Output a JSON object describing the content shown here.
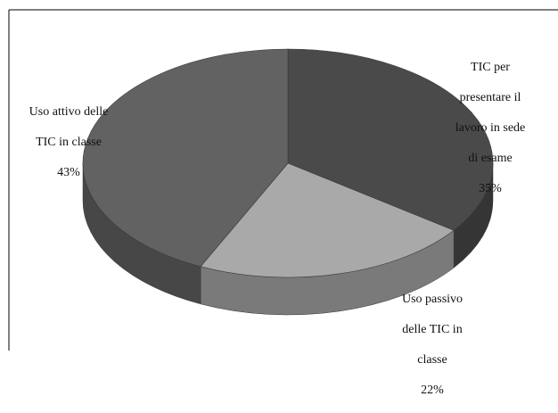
{
  "chart_data": {
    "type": "pie",
    "style": "3d",
    "legend": "none",
    "slices": [
      {
        "label_lines": [
          "TIC per",
          "presentare il",
          "lavoro in sede",
          "di esame"
        ],
        "value": 35,
        "percent_label": "35%",
        "color": "#4a4a4a"
      },
      {
        "label_lines": [
          "Uso passivo",
          "delle TIC in",
          "classe"
        ],
        "value": 22,
        "percent_label": "22%",
        "color": "#a9a9a9"
      },
      {
        "label_lines": [
          "Uso attivo delle",
          "TIC in classe"
        ],
        "value": 43,
        "percent_label": "43%",
        "color": "#626262"
      }
    ]
  },
  "colors": {
    "frame": "#000000",
    "label_text": "#111111"
  }
}
